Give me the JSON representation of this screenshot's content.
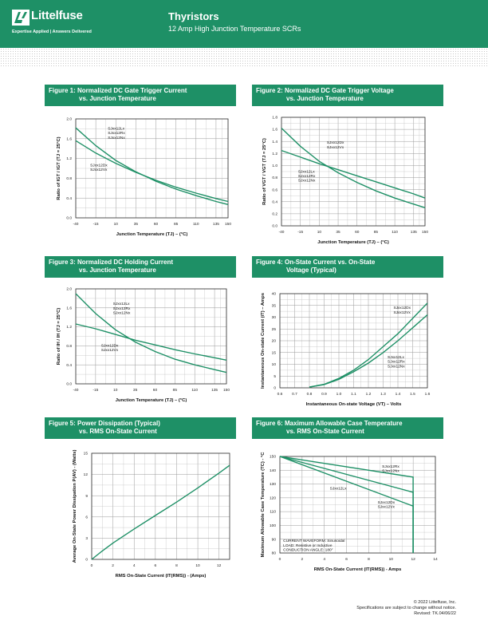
{
  "header": {
    "brand": "Littelfuse",
    "tagline": "Expertise Applied | Answers Delivered",
    "title": "Thyristors",
    "subtitle": "12 Amp High Junction Temperature SCRs"
  },
  "footer": {
    "line1": "© 2022 Littelfuse, Inc.",
    "line2": "Specifications are subject to change without notice.",
    "line3": "Revised: TK.04/06/22"
  },
  "figures": [
    {
      "title_line1": "Figure 1: Normalized DC Gate Trigger Current",
      "title_line2": "vs. Junction Temperature",
      "chart_data": {
        "type": "line",
        "xlabel": "Junction Temperature (TJ) – (°C)",
        "ylabel": "Ratio of IGT / IGT (TJ = 25°C)",
        "xlim": [
          -40,
          150
        ],
        "ylim": [
          0,
          2.0
        ],
        "xticks": [
          "-40",
          "-15",
          "10",
          "35",
          "60",
          "85",
          "110",
          "135",
          "150"
        ],
        "xtick_values": [
          -40,
          -15,
          10,
          35,
          60,
          85,
          110,
          135,
          150
        ],
        "yticks": [
          "0.0",
          "0.4",
          "0.8",
          "1.2",
          "1.6",
          "2.0"
        ],
        "ytick_values": [
          0,
          0.4,
          0.8,
          1.2,
          1.6,
          2.0
        ],
        "grid": true,
        "labels": [
          {
            "text": [
              "SJxx12Lx",
              "SJxx12Rx",
              "SJxx12Nx"
            ],
            "x": 0,
            "y": 1.78
          },
          {
            "text": [
              "SJxx12Dx",
              "SJxx12Vx"
            ],
            "x": -22,
            "y": 1.04
          }
        ],
        "series": [
          {
            "x": [
              -40,
              -15,
              10,
              35,
              60,
              85,
              110,
              135,
              150
            ],
            "y": [
              1.82,
              1.46,
              1.16,
              0.93,
              0.74,
              0.58,
              0.45,
              0.33,
              0.27
            ]
          },
          {
            "x": [
              -40,
              -15,
              10,
              35,
              60,
              85,
              110,
              135,
              150
            ],
            "y": [
              1.56,
              1.31,
              1.1,
              0.92,
              0.76,
              0.62,
              0.5,
              0.39,
              0.33
            ]
          }
        ]
      }
    },
    {
      "title_line1": "Figure 2: Normalized DC Gate Trigger Voltage",
      "title_line2": "vs. Junction Temperature",
      "chart_data": {
        "type": "line",
        "xlabel": "Junction Temperature (TJ) – (°C)",
        "ylabel": "Ratio of VGT / VGT (TJ = 25°C)",
        "xlim": [
          -40,
          150
        ],
        "ylim": [
          0,
          1.8
        ],
        "xticks": [
          "-40",
          "-15",
          "10",
          "35",
          "60",
          "85",
          "110",
          "135",
          "150"
        ],
        "xtick_values": [
          -40,
          -15,
          10,
          35,
          60,
          85,
          110,
          135,
          150
        ],
        "yticks": [
          "0.0",
          "0.2",
          "0.4",
          "0.6",
          "0.8",
          "1.0",
          "1.2",
          "1.4",
          "1.6",
          "1.8"
        ],
        "ytick_values": [
          0,
          0.2,
          0.4,
          0.6,
          0.8,
          1.0,
          1.2,
          1.4,
          1.6,
          1.8
        ],
        "grid": true,
        "labels": [
          {
            "text": [
              "SJxx12Dx",
              "SJxx12Vx"
            ],
            "x": 20,
            "y": 1.36
          },
          {
            "text": [
              "SJxx12Lx",
              "SJxx12Rx",
              "SJxx12Nx"
            ],
            "x": -18,
            "y": 0.88
          }
        ],
        "series": [
          {
            "x": [
              -40,
              -15,
              10,
              35,
              60,
              85,
              110,
              135,
              150
            ],
            "y": [
              1.62,
              1.32,
              1.07,
              0.88,
              0.72,
              0.58,
              0.46,
              0.36,
              0.3
            ]
          },
          {
            "x": [
              -40,
              -15,
              10,
              35,
              60,
              85,
              110,
              135,
              150
            ],
            "y": [
              1.25,
              1.14,
              1.03,
              0.93,
              0.83,
              0.73,
              0.63,
              0.53,
              0.46
            ]
          }
        ]
      }
    },
    {
      "title_line1": "Figure 3: Normalized DC Holding Current",
      "title_line2": "vs. Junction Temperature",
      "chart_data": {
        "type": "line",
        "xlabel": "Junction Temperature (TJ) – (°C)",
        "ylabel": "Ratio of IH / IH (TJ = 25°C)",
        "xlim": [
          -40,
          150
        ],
        "ylim": [
          0,
          2.0
        ],
        "xticks": [
          "-40",
          "-15",
          "10",
          "35",
          "60",
          "85",
          "110",
          "135",
          "150"
        ],
        "xtick_values": [
          -40,
          -15,
          10,
          35,
          60,
          85,
          110,
          135,
          150
        ],
        "yticks": [
          "0.0",
          "0.4",
          "0.8",
          "1.2",
          "1.6",
          "2.0"
        ],
        "ytick_values": [
          0,
          0.4,
          0.8,
          1.2,
          1.6,
          2.0
        ],
        "grid": true,
        "labels": [
          {
            "text": [
              "SJxx12Lx",
              "SJxx12Rx",
              "SJxx12Nx"
            ],
            "x": 7,
            "y": 1.66
          },
          {
            "text": [
              "SJxx12Dx",
              "SJxx12Vx"
            ],
            "x": -8,
            "y": 0.78
          }
        ],
        "series": [
          {
            "x": [
              -40,
              -15,
              10,
              35,
              60,
              85,
              110,
              135,
              150
            ],
            "y": [
              1.9,
              1.48,
              1.14,
              0.88,
              0.68,
              0.52,
              0.4,
              0.3,
              0.24
            ]
          },
          {
            "x": [
              -40,
              -15,
              10,
              35,
              60,
              85,
              110,
              135,
              150
            ],
            "y": [
              1.26,
              1.16,
              1.04,
              0.92,
              0.82,
              0.72,
              0.63,
              0.55,
              0.5
            ]
          }
        ]
      }
    },
    {
      "title_line1": "Figure 4: On-State Current vs. On-State",
      "title_line2": "Voltage (Typical)",
      "chart_data": {
        "type": "line",
        "xlabel": "Instantaneous On-state Voltage (VT) – Volts",
        "ylabel": "Instantaneous On-state Current (iT) – Amps",
        "xlim": [
          0.6,
          1.6
        ],
        "ylim": [
          0,
          40
        ],
        "xticks": [
          "0.6",
          "0.7",
          "0.8",
          "0.9",
          "1.0",
          "1.1",
          "1.2",
          "1.3",
          "1.4",
          "1.5",
          "1.6"
        ],
        "xtick_values": [
          0.6,
          0.7,
          0.8,
          0.9,
          1.0,
          1.1,
          1.2,
          1.3,
          1.4,
          1.5,
          1.6
        ],
        "yticks": [
          "0",
          "5",
          "10",
          "15",
          "20",
          "25",
          "30",
          "35",
          "40"
        ],
        "ytick_values": [
          0,
          5,
          10,
          15,
          20,
          25,
          30,
          35,
          40
        ],
        "grid": true,
        "labels": [
          {
            "text": [
              "SJxx12Dx",
              "SJxx12Vx"
            ],
            "x": 1.37,
            "y": 33.5
          },
          {
            "text": [
              "SJxx12Lx",
              "SJxx12Rx",
              "SJxx12Nx"
            ],
            "x": 1.33,
            "y": 12.5
          }
        ],
        "series": [
          {
            "x": [
              0.8,
              0.9,
              1.0,
              1.1,
              1.2,
              1.3,
              1.4,
              1.5,
              1.6
            ],
            "y": [
              0.3,
              1.5,
              4.0,
              7.5,
              12.0,
              17.5,
              23.0,
              29.5,
              36.0
            ]
          },
          {
            "x": [
              0.8,
              0.9,
              1.0,
              1.1,
              1.2,
              1.3,
              1.4,
              1.5,
              1.6
            ],
            "y": [
              0.3,
              1.4,
              3.6,
              6.8,
              10.5,
              15.0,
              20.0,
              25.5,
              31.0
            ]
          }
        ]
      }
    },
    {
      "title_line1": "Figure 5: Power Dissipation (Typical)",
      "title_line2": "vs. RMS On-State Current",
      "chart_data": {
        "type": "line",
        "xlabel": "RMS On-State Current (IT(RMS)) - (Amps)",
        "ylabel": "Average On-State Power Dissipation P(AV) - (Watts)",
        "xlim": [
          0,
          13
        ],
        "ylim": [
          0,
          15
        ],
        "xticks": [
          "0",
          "2",
          "4",
          "6",
          "8",
          "10",
          "12"
        ],
        "xtick_values": [
          0,
          2,
          4,
          6,
          8,
          10,
          12
        ],
        "yticks": [
          "0",
          "3",
          "6",
          "9",
          "12",
          "15"
        ],
        "ytick_values": [
          0,
          3,
          6,
          9,
          12,
          15
        ],
        "grid": true,
        "labels": [],
        "series": [
          {
            "x": [
              0,
              1,
              2,
              4,
              6,
              8,
              10,
              12,
              13
            ],
            "y": [
              0,
              1.2,
              2.3,
              4.3,
              6.2,
              8.1,
              10.1,
              12.2,
              13.3
            ]
          }
        ]
      }
    },
    {
      "title_line1": "Figure 6: Maximum Allowable Case Temperature",
      "title_line2": "vs. RMS On-State Current",
      "chart_data": {
        "type": "line",
        "xlabel": "RMS On-State Current (IT(RMS)) - Amps",
        "ylabel": "Maximum Allowable Case Temperature (TC) - °C",
        "xlim": [
          0,
          14
        ],
        "ylim": [
          80,
          150
        ],
        "xticks": [
          "0",
          "2",
          "4",
          "6",
          "8",
          "10",
          "12",
          "14"
        ],
        "xtick_values": [
          0,
          2,
          4,
          6,
          8,
          10,
          12,
          14
        ],
        "yticks": [
          "80",
          "90",
          "100",
          "110",
          "120",
          "130",
          "140",
          "150"
        ],
        "ytick_values": [
          80,
          90,
          100,
          110,
          120,
          130,
          140,
          150
        ],
        "grid": true,
        "labels": [
          {
            "text": [
              "SJxx12Rx",
              "SJxx12Nx"
            ],
            "x": 9.2,
            "y": 142
          },
          {
            "text": [
              "SJxx12Lx"
            ],
            "x": 4.5,
            "y": 126
          },
          {
            "text": [
              "SJxx12Dx",
              "SJxx12Vx"
            ],
            "x": 8.8,
            "y": 116
          },
          {
            "text": [
              "CURRENT WAVEFORM: Sinusoidal",
              "LOAD: Resistive or Inductive",
              "CONDUCTION ANGLE: 180°"
            ],
            "x": 0.3,
            "y": 88
          }
        ],
        "series": [
          {
            "x": [
              0,
              12,
              12
            ],
            "y": [
              150,
              135,
              80
            ]
          },
          {
            "x": [
              0,
              12,
              12
            ],
            "y": [
              150,
              124,
              80
            ]
          },
          {
            "x": [
              0,
              12,
              12
            ],
            "y": [
              150,
              114,
              80
            ]
          }
        ]
      }
    }
  ]
}
